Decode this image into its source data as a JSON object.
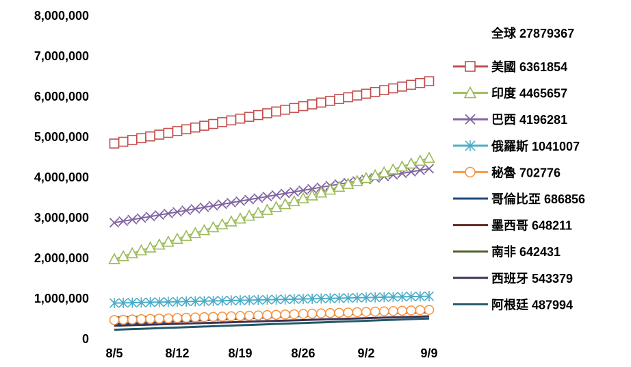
{
  "chart_data": {
    "type": "line",
    "title": "",
    "xlabel": "",
    "ylabel": "",
    "ylim": [
      0,
      8000000
    ],
    "yticks": [
      "0",
      "1,000,000",
      "2,000,000",
      "3,000,000",
      "4,000,000",
      "5,000,000",
      "6,000,000",
      "7,000,000",
      "8,000,000"
    ],
    "xtick_labels": [
      "8/5",
      "8/12",
      "8/19",
      "8/26",
      "9/2",
      "9/9"
    ],
    "x_range_days": [
      "8/5",
      "9/9"
    ],
    "grid": false,
    "legend_position": "right",
    "legend_header": "全球 27879367",
    "series": [
      {
        "name": "美國 6361854",
        "color": "#C0504D",
        "marker": "square",
        "start": 4820000,
        "end": 6361854
      },
      {
        "name": "印度 4465657",
        "color": "#9BBB59",
        "marker": "triangle",
        "start": 1960000,
        "end": 4465657
      },
      {
        "name": "巴西 4196281",
        "color": "#8064A2",
        "marker": "x",
        "start": 2860000,
        "end": 4196281
      },
      {
        "name": "俄羅斯 1041007",
        "color": "#4BACC6",
        "marker": "asterisk",
        "start": 870000,
        "end": 1041007
      },
      {
        "name": "秘魯 702776",
        "color": "#F79646",
        "marker": "circle",
        "start": 450000,
        "end": 702776
      },
      {
        "name": "哥倫比亞 686856",
        "color": "#1F497D",
        "marker": "none",
        "start": 350000,
        "end": 686856
      },
      {
        "name": "墨西哥 648211",
        "color": "#632523",
        "marker": "none",
        "start": 450000,
        "end": 648211
      },
      {
        "name": "南非 642431",
        "color": "#4F6228",
        "marker": "none",
        "start": 520000,
        "end": 642431
      },
      {
        "name": "西班牙 543379",
        "color": "#403151",
        "marker": "none",
        "start": 310000,
        "end": 543379
      },
      {
        "name": "阿根廷 487994",
        "color": "#215968",
        "marker": "none",
        "start": 210000,
        "end": 487994
      }
    ]
  }
}
